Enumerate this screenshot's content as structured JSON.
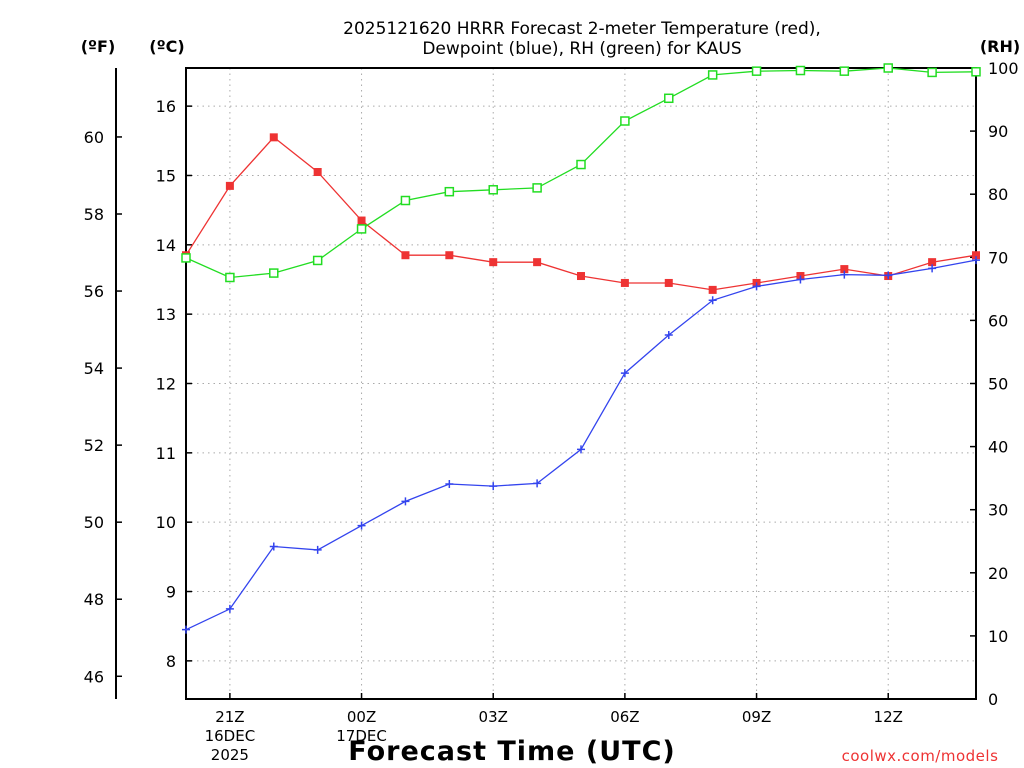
{
  "chart_data": {
    "type": "line",
    "title_line1": "2025121620 HRRR Forecast 2-meter Temperature (red),",
    "title_line2": "Dewpoint (blue), RH (green) for KAUS",
    "xlabel": "Forecast Time (UTC)",
    "credit": "coolwx.com/models",
    "unit_labels": {
      "fahrenheit": "(ºF)",
      "celsius": "(ºC)",
      "rh": "(RH)"
    },
    "x_range": [
      0,
      18
    ],
    "x_ticks": [
      {
        "x": 1,
        "label": "21Z",
        "sub1": "16DEC",
        "sub2": "2025"
      },
      {
        "x": 4,
        "label": "00Z",
        "sub1": "17DEC",
        "sub2": ""
      },
      {
        "x": 7,
        "label": "03Z",
        "sub1": "",
        "sub2": ""
      },
      {
        "x": 10,
        "label": "06Z",
        "sub1": "",
        "sub2": ""
      },
      {
        "x": 13,
        "label": "09Z",
        "sub1": "",
        "sub2": ""
      },
      {
        "x": 16,
        "label": "12Z",
        "sub1": "",
        "sub2": ""
      }
    ],
    "celsius_axis": {
      "range": [
        7.45,
        16.55
      ],
      "ticks": [
        8,
        9,
        10,
        11,
        12,
        13,
        14,
        15,
        16
      ]
    },
    "fahrenheit_axis": {
      "range": [
        45.41,
        61.79
      ],
      "ticks": [
        46,
        48,
        50,
        52,
        54,
        56,
        58,
        60
      ]
    },
    "rh_axis": {
      "range": [
        0,
        100
      ],
      "ticks": [
        0,
        10,
        20,
        30,
        40,
        50,
        60,
        70,
        80,
        90,
        100
      ]
    },
    "x": [
      0,
      1,
      2,
      3,
      4,
      5,
      6,
      7,
      8,
      9,
      10,
      11,
      12,
      13,
      14,
      15,
      16,
      17,
      18
    ],
    "series": [
      {
        "name": "Temperature",
        "color": "#ee3333",
        "marker": "filled-square",
        "axis": "celsius",
        "values": [
          13.85,
          14.85,
          15.55,
          15.05,
          14.35,
          13.85,
          13.85,
          13.75,
          13.75,
          13.55,
          13.45,
          13.45,
          13.35,
          13.45,
          13.55,
          13.65,
          13.55,
          13.75,
          13.85
        ]
      },
      {
        "name": "Dewpoint",
        "color": "#3344ee",
        "marker": "plus",
        "axis": "celsius",
        "values": [
          8.45,
          8.75,
          9.65,
          9.6,
          9.95,
          10.3,
          10.55,
          10.52,
          10.56,
          11.05,
          12.15,
          12.7,
          13.2,
          13.4,
          13.5,
          13.57,
          13.56,
          13.66,
          13.78
        ]
      },
      {
        "name": "RH",
        "color": "#22dd22",
        "marker": "open-square",
        "axis": "rh",
        "values": [
          69.9,
          66.8,
          67.5,
          69.5,
          74.5,
          79.0,
          80.4,
          80.7,
          81.0,
          84.7,
          91.6,
          95.2,
          98.9,
          99.5,
          99.6,
          99.5,
          100.0,
          99.3,
          99.4
        ]
      }
    ]
  }
}
